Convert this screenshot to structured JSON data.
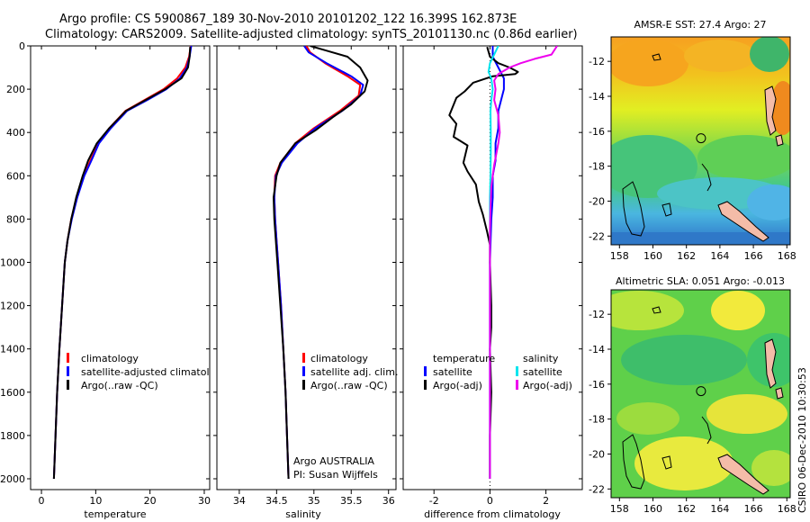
{
  "title": {
    "line1": "Argo profile: CS 5900867_189 30-Nov-2010 20101202_122 16.399S 162.873E",
    "line2": "Climatology: CARS2009. Satellite-adjusted climatology: synTS_20101130.nc (0.86d earlier)"
  },
  "credit": "CSIRO 06-Dec-2010 10:30:53",
  "colors": {
    "climatology": "#ff0000",
    "satellite": "#0000ff",
    "argo": "#000000",
    "sat_sal_diff": "#00e5ee",
    "argo_sal_diff": "#ee00ee",
    "land": "#f4bca8"
  },
  "chart_data": [
    {
      "type": "line",
      "name": "temperature-profile",
      "xlabel": "temperature",
      "xlim": [
        -2,
        31
      ],
      "ylim": [
        0,
        2050
      ],
      "y_inverted": true,
      "xticks": [
        0,
        10,
        20,
        30
      ],
      "yticks": [
        0,
        200,
        400,
        600,
        800,
        1000,
        1200,
        1400,
        1600,
        1800,
        2000
      ],
      "legend": [
        "climatology",
        "satellite-adjusted climatology",
        "Argo(..raw -QC)"
      ],
      "series": [
        {
          "name": "climatology",
          "color": "#ff0000",
          "points": [
            [
              27.5,
              0
            ],
            [
              27.2,
              50
            ],
            [
              26.5,
              100
            ],
            [
              25,
              150
            ],
            [
              22.5,
              200
            ],
            [
              19,
              250
            ],
            [
              15.5,
              300
            ],
            [
              12.5,
              380
            ],
            [
              10.5,
              450
            ],
            [
              9,
              530
            ],
            [
              7.8,
              600
            ],
            [
              6.5,
              700
            ],
            [
              5.5,
              800
            ],
            [
              4.8,
              900
            ],
            [
              4.3,
              1000
            ],
            [
              3.8,
              1200
            ],
            [
              3.3,
              1400
            ],
            [
              2.9,
              1600
            ],
            [
              2.6,
              1800
            ],
            [
              2.3,
              2000
            ]
          ]
        },
        {
          "name": "satellite-adjusted climatology",
          "color": "#0000ff",
          "points": [
            [
              27.6,
              0
            ],
            [
              27.3,
              50
            ],
            [
              26.8,
              100
            ],
            [
              25.5,
              150
            ],
            [
              23,
              200
            ],
            [
              19.5,
              250
            ],
            [
              15.8,
              300
            ],
            [
              12.8,
              380
            ],
            [
              10.6,
              450
            ],
            [
              9.2,
              530
            ],
            [
              7.9,
              600
            ],
            [
              6.6,
              700
            ],
            [
              5.6,
              800
            ],
            [
              4.8,
              900
            ],
            [
              4.3,
              1000
            ],
            [
              3.8,
              1200
            ],
            [
              3.3,
              1400
            ],
            [
              2.9,
              1600
            ],
            [
              2.6,
              1800
            ],
            [
              2.3,
              2000
            ]
          ]
        },
        {
          "name": "Argo(..raw -QC)",
          "color": "#000000",
          "points": [
            [
              27.4,
              5
            ],
            [
              27.3,
              50
            ],
            [
              27,
              100
            ],
            [
              25.8,
              150
            ],
            [
              22.8,
              200
            ],
            [
              19.2,
              250
            ],
            [
              15.6,
              300
            ],
            [
              12.5,
              380
            ],
            [
              10.2,
              450
            ],
            [
              8.6,
              530
            ],
            [
              7.6,
              600
            ],
            [
              6.4,
              700
            ],
            [
              5.5,
              800
            ],
            [
              4.8,
              900
            ],
            [
              4.3,
              1000
            ],
            [
              3.8,
              1200
            ],
            [
              3.3,
              1400
            ],
            [
              2.9,
              1600
            ],
            [
              2.6,
              1800
            ],
            [
              2.3,
              2000
            ]
          ]
        }
      ]
    },
    {
      "type": "line",
      "name": "salinity-profile",
      "xlabel": "salinity",
      "xlim": [
        33.7,
        36.1
      ],
      "ylim": [
        0,
        2050
      ],
      "y_inverted": true,
      "xticks": [
        34,
        34.5,
        35,
        35.5,
        36
      ],
      "legend": [
        "climatology",
        "satellite adj. clim.",
        "Argo(..raw -QC)"
      ],
      "annotation": [
        "Argo AUSTRALIA",
        "PI: Susan Wijffels"
      ],
      "series": [
        {
          "name": "climatology",
          "color": "#ff0000",
          "points": [
            [
              34.9,
              0
            ],
            [
              34.95,
              30
            ],
            [
              35.15,
              80
            ],
            [
              35.45,
              140
            ],
            [
              35.62,
              180
            ],
            [
              35.6,
              230
            ],
            [
              35.35,
              300
            ],
            [
              35.0,
              380
            ],
            [
              34.75,
              450
            ],
            [
              34.55,
              540
            ],
            [
              34.48,
              600
            ],
            [
              34.47,
              700
            ],
            [
              34.48,
              800
            ],
            [
              34.5,
              900
            ],
            [
              34.52,
              1000
            ],
            [
              34.56,
              1200
            ],
            [
              34.59,
              1400
            ],
            [
              34.62,
              1600
            ],
            [
              34.64,
              1800
            ],
            [
              34.66,
              2000
            ]
          ]
        },
        {
          "name": "satellite adj. clim.",
          "color": "#0000ff",
          "points": [
            [
              34.87,
              0
            ],
            [
              34.93,
              30
            ],
            [
              35.17,
              80
            ],
            [
              35.5,
              140
            ],
            [
              35.66,
              180
            ],
            [
              35.62,
              230
            ],
            [
              35.38,
              300
            ],
            [
              35.02,
              380
            ],
            [
              34.78,
              450
            ],
            [
              34.57,
              540
            ],
            [
              34.49,
              600
            ],
            [
              34.47,
              700
            ],
            [
              34.48,
              800
            ],
            [
              34.5,
              900
            ],
            [
              34.52,
              1000
            ],
            [
              34.56,
              1200
            ],
            [
              34.59,
              1400
            ],
            [
              34.62,
              1600
            ],
            [
              34.64,
              1800
            ],
            [
              34.66,
              2000
            ]
          ]
        },
        {
          "name": "Argo(..raw -QC)",
          "color": "#000000",
          "points": [
            [
              34.95,
              0
            ],
            [
              35.15,
              20
            ],
            [
              35.45,
              50
            ],
            [
              35.62,
              100
            ],
            [
              35.72,
              160
            ],
            [
              35.68,
              210
            ],
            [
              35.5,
              270
            ],
            [
              35.25,
              330
            ],
            [
              35.02,
              390
            ],
            [
              34.75,
              450
            ],
            [
              34.55,
              540
            ],
            [
              34.5,
              600
            ],
            [
              34.46,
              700
            ],
            [
              34.47,
              800
            ],
            [
              34.49,
              900
            ],
            [
              34.51,
              1000
            ],
            [
              34.55,
              1200
            ],
            [
              34.59,
              1400
            ],
            [
              34.62,
              1600
            ],
            [
              34.64,
              1800
            ],
            [
              34.66,
              2000
            ]
          ]
        }
      ]
    },
    {
      "type": "line",
      "name": "difference-profile",
      "xlabel": "difference from climatology",
      "xlim": [
        -3.1,
        3.3
      ],
      "ylim": [
        0,
        2050
      ],
      "y_inverted": true,
      "xticks": [
        -2,
        0,
        2
      ],
      "legend": [
        "temperature",
        "satellite",
        "Argo(-adj)",
        "salinity",
        "satellite",
        "Argo(-adj)"
      ],
      "series": [
        {
          "name": "temperature satellite",
          "color": "#0000ff",
          "points": [
            [
              0.1,
              0
            ],
            [
              0.1,
              50
            ],
            [
              0.3,
              100
            ],
            [
              0.5,
              150
            ],
            [
              0.5,
              200
            ],
            [
              0.4,
              250
            ],
            [
              0.3,
              300
            ],
            [
              0.3,
              380
            ],
            [
              0.2,
              450
            ],
            [
              0.2,
              530
            ],
            [
              0.1,
              600
            ],
            [
              0.1,
              700
            ],
            [
              0.05,
              800
            ],
            [
              0,
              1000
            ],
            [
              0,
              1500
            ],
            [
              0,
              2000
            ]
          ]
        },
        {
          "name": "temperature Argo(-adj)",
          "color": "#000000",
          "points": [
            [
              -0.1,
              5
            ],
            [
              0,
              50
            ],
            [
              0.3,
              80
            ],
            [
              0.7,
              100
            ],
            [
              1.0,
              120
            ],
            [
              0.9,
              130
            ],
            [
              0.1,
              140
            ],
            [
              -0.6,
              170
            ],
            [
              -0.9,
              210
            ],
            [
              -1.2,
              240
            ],
            [
              -1.45,
              320
            ],
            [
              -1.2,
              360
            ],
            [
              -1.3,
              420
            ],
            [
              -0.8,
              460
            ],
            [
              -0.95,
              540
            ],
            [
              -0.8,
              580
            ],
            [
              -0.5,
              640
            ],
            [
              -0.4,
              720
            ],
            [
              -0.25,
              780
            ],
            [
              -0.1,
              860
            ],
            [
              0,
              920
            ],
            [
              0,
              1000
            ],
            [
              0.05,
              1200
            ],
            [
              0.05,
              1300
            ],
            [
              0,
              1400
            ],
            [
              0.05,
              1600
            ],
            [
              0,
              1800
            ],
            [
              0,
              2000
            ]
          ]
        },
        {
          "name": "salinity satellite",
          "color": "#00e5ee",
          "points": [
            [
              0.3,
              0
            ],
            [
              0.15,
              40
            ],
            [
              0,
              80
            ],
            [
              -0.05,
              120
            ],
            [
              0.05,
              150
            ],
            [
              0.1,
              200
            ],
            [
              0.05,
              250
            ],
            [
              0.02,
              300
            ],
            [
              0.03,
              400
            ],
            [
              0.03,
              500
            ],
            [
              0.02,
              600
            ],
            [
              0,
              700
            ],
            [
              0,
              800
            ],
            [
              0,
              1000
            ],
            [
              0,
              1500
            ],
            [
              0,
              2000
            ]
          ]
        },
        {
          "name": "salinity Argo(-adj)",
          "color": "#ee00ee",
          "points": [
            [
              2.4,
              0
            ],
            [
              2.2,
              40
            ],
            [
              1.6,
              60
            ],
            [
              1.1,
              80
            ],
            [
              0.7,
              100
            ],
            [
              0.3,
              130
            ],
            [
              0.15,
              160
            ],
            [
              0.2,
              200
            ],
            [
              0.15,
              250
            ],
            [
              0.3,
              320
            ],
            [
              0.35,
              400
            ],
            [
              0.3,
              450
            ],
            [
              0.15,
              550
            ],
            [
              0.05,
              650
            ],
            [
              0.02,
              750
            ],
            [
              0,
              850
            ],
            [
              0,
              1000
            ],
            [
              0,
              1500
            ],
            [
              0,
              2000
            ]
          ]
        }
      ]
    },
    {
      "type": "heatmap",
      "name": "sst-map",
      "title": "AMSR-E SST: 27.4 Argo: 27",
      "xlim": [
        157.5,
        168.2
      ],
      "ylim": [
        -22.5,
        -10.6
      ],
      "xticks": [
        158,
        160,
        162,
        164,
        166,
        168
      ],
      "yticks": [
        -12,
        -14,
        -16,
        -18,
        -20,
        -22
      ],
      "float_position": {
        "lon": 162.873,
        "lat": -16.399
      }
    },
    {
      "type": "heatmap",
      "name": "sla-map",
      "title": "Altimetric SLA: 0.051 Argo: -0.013",
      "xlim": [
        157.5,
        168.2
      ],
      "ylim": [
        -22.5,
        -10.6
      ],
      "xticks": [
        158,
        160,
        162,
        164,
        166,
        168
      ],
      "yticks": [
        -12,
        -14,
        -16,
        -18,
        -20,
        -22
      ],
      "float_position": {
        "lon": 162.873,
        "lat": -16.399
      }
    }
  ]
}
